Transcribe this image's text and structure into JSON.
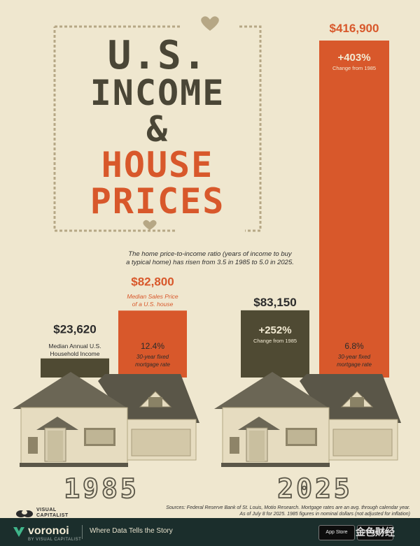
{
  "title": {
    "line1": "U.S.",
    "line2": "INCOME",
    "line3": "&",
    "line4": "HOUSE",
    "line5": "PRICES"
  },
  "subtitle": {
    "line1": "The home price-to-income ratio (years of income to buy",
    "line2": "a typical home) has risen from 3.5 in 1985 to 5.0 in 2025."
  },
  "colors": {
    "background": "#efe7cf",
    "income_bar": "#4f4a33",
    "price_bar": "#d8582b",
    "title_dark": "#4a4636",
    "title_orange": "#d8582b",
    "house_body": "#e6dcc0",
    "house_roof": "#5a5648",
    "footer": "#1b2e2c"
  },
  "chart_data": {
    "type": "bar",
    "categories": [
      "1985",
      "2025"
    ],
    "series": [
      {
        "name": "Median Annual U.S. Household Income",
        "values": [
          23620,
          83150
        ],
        "labels": [
          "$23,620",
          "$83,150"
        ]
      },
      {
        "name": "Median Sales Price of a U.S. house",
        "values": [
          82800,
          416900
        ],
        "labels": [
          "$82,800",
          "$416,900"
        ]
      }
    ],
    "annotations": {
      "income_1985_desc": [
        "Median Annual U.S.",
        "Household Income"
      ],
      "price_1985_desc": [
        "Median Sales Price",
        "of a U.S. house"
      ],
      "income_change": "+252%",
      "income_change_desc": "Change from 1985",
      "price_change": "+403%",
      "price_change_desc": "Change from 1985",
      "mortgage_1985": "12.4%",
      "mortgage_2025": "6.8%",
      "mortgage_desc": [
        "30-year fixed",
        "mortgage rate"
      ]
    }
  },
  "sources": {
    "line1": "Sources: Federal Reserve Bank of St. Louis, Motio Research. Mortgage rates are an avg. through calendar year.",
    "line2": "As of July 8 for 2025. 1985 figures in nominal dollars (not adjusted for inflation)"
  },
  "footer": {
    "logo_top": "VISUAL",
    "logo_bottom": "CAPITALIST",
    "brand": "voronoi",
    "by": "BY VISUAL CAPITALIST",
    "tagline": "Where Data Tells the Story",
    "app_store": "App Store",
    "google_play": "Google Play",
    "watermark": "金色财经"
  }
}
